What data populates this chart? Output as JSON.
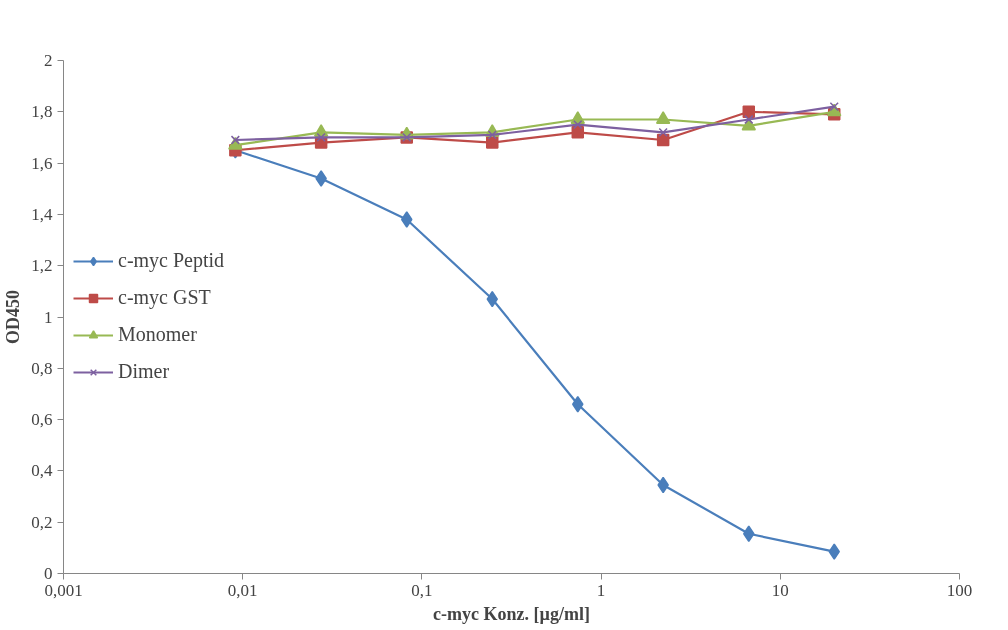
{
  "chart_data": {
    "type": "line",
    "xlabel": "c-myc Konz. [µg/ml]",
    "ylabel": "OD450",
    "log": "x",
    "grid": false,
    "legend": "left",
    "line_style": "solid",
    "x": [
      0.0091,
      0.0274,
      0.0823,
      0.247,
      0.741,
      2.22,
      6.67,
      20
    ],
    "xlim": [
      0.001,
      100
    ],
    "xticks": [
      {
        "value": 0.001,
        "label": "0,001"
      },
      {
        "value": 0.01,
        "label": "0,01"
      },
      {
        "value": 0.1,
        "label": "0,1"
      },
      1,
      10,
      100
    ],
    "ylim": [
      0,
      2
    ],
    "yticks": [
      0,
      {
        "value": 0.2,
        "label": "0,2"
      },
      {
        "value": 0.4,
        "label": "0,4"
      },
      {
        "value": 0.6,
        "label": "0,6"
      },
      {
        "value": 0.8,
        "label": "0,8"
      },
      1,
      {
        "value": 1.2,
        "label": "1,2"
      },
      {
        "value": 1.4,
        "label": "1,4"
      },
      {
        "value": 1.6,
        "label": "1,6"
      },
      {
        "value": 1.8,
        "label": "1,8"
      },
      2
    ],
    "series": [
      {
        "name": "c-myc Peptid",
        "color": "#4a7ebb",
        "marker": "diamond",
        "values": [
          1.65,
          1.54,
          1.38,
          1.07,
          0.66,
          0.345,
          0.155,
          0.085
        ]
      },
      {
        "name": "c-myc GST",
        "color": "#be4b48",
        "marker": "square",
        "values": [
          1.65,
          1.68,
          1.7,
          1.68,
          1.72,
          1.69,
          1.8,
          1.79
        ]
      },
      {
        "name": "Monomer",
        "color": "#98b954",
        "marker": "triangle",
        "values": [
          1.67,
          1.72,
          1.71,
          1.72,
          1.77,
          1.77,
          1.745,
          1.8
        ]
      },
      {
        "name": "Dimer",
        "color": "#7d60a0",
        "marker": "cross",
        "values": [
          1.69,
          1.7,
          1.7,
          1.71,
          1.75,
          1.72,
          1.77,
          1.82
        ]
      }
    ]
  }
}
